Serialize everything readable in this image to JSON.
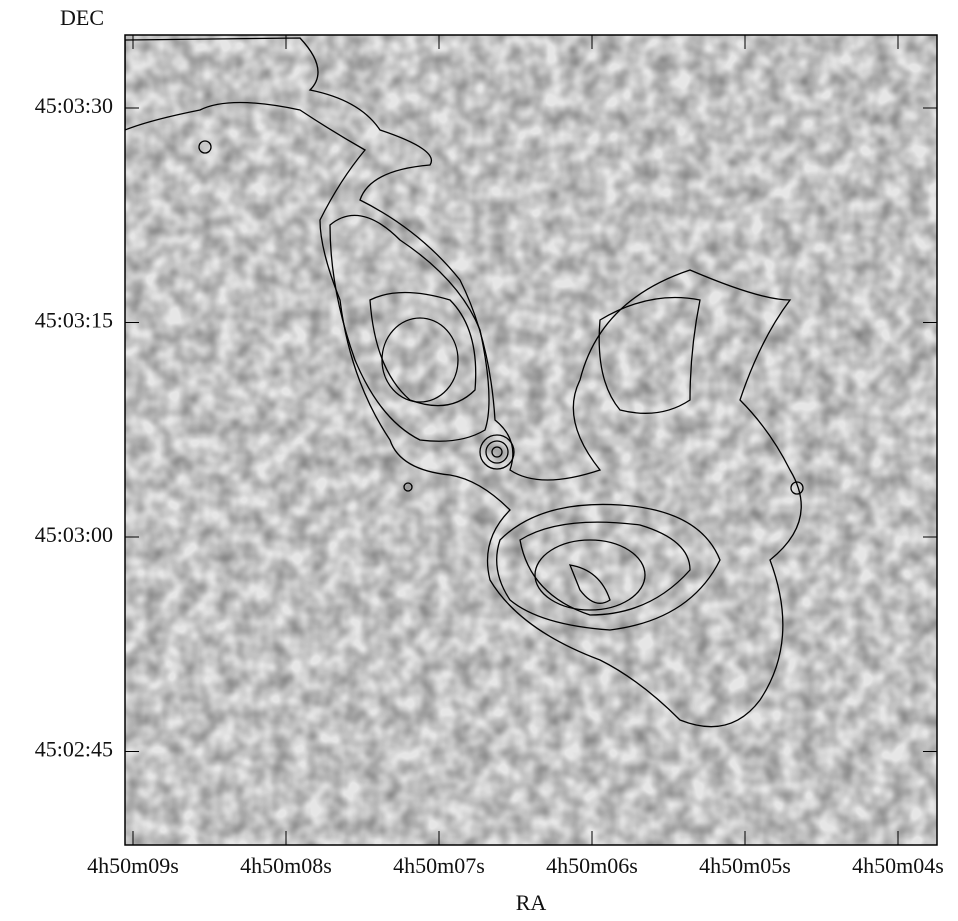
{
  "figure": {
    "y_label": "DEC",
    "x_label": "RA",
    "x_ticks": [
      "4h50m09s",
      "4h50m08s",
      "4h50m07s",
      "4h50m06s",
      "4h50m05s",
      "4h50m04s"
    ],
    "y_ticks": [
      "45:03:30",
      "45:03:15",
      "45:03:00",
      "45:02:45"
    ]
  }
}
